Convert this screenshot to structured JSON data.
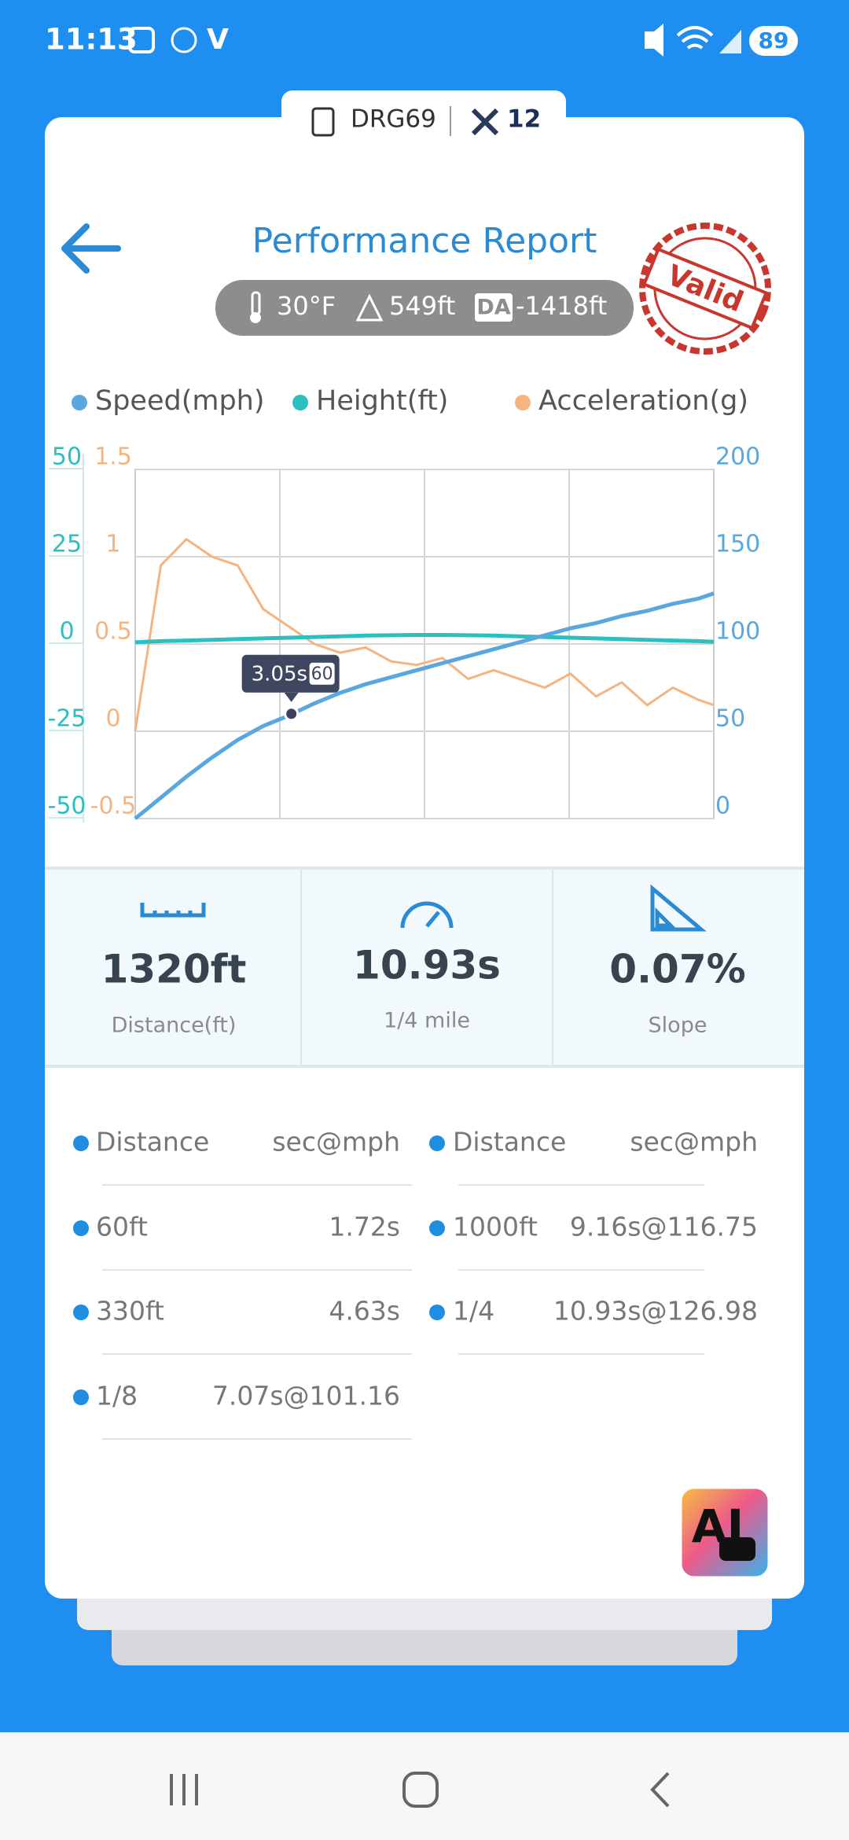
{
  "status_bar": {
    "time": "11:13",
    "carrier_icon": "V",
    "battery": "89"
  },
  "device": {
    "name": "DRG69",
    "satellites": "12"
  },
  "header": {
    "title": "Performance Report",
    "stamp": "Valid"
  },
  "conditions": {
    "temperature": "30°F",
    "altitude": "549ft",
    "da_label": "DA",
    "density_altitude": "-1418ft"
  },
  "chart_data": {
    "type": "line",
    "x": [
      0,
      0.5,
      1,
      1.5,
      2,
      2.5,
      3,
      3.5,
      4,
      4.5,
      5,
      5.5,
      6,
      6.5,
      7,
      7.5,
      8,
      8.5,
      9,
      9.5,
      10,
      10.5,
      11,
      11.3
    ],
    "xlim": [
      0,
      11.3
    ],
    "series": [
      {
        "name": "Speed(mph)",
        "color": "#5aa7e0",
        "axis": "y2",
        "values": [
          0,
          12,
          24,
          35,
          45,
          53,
          59,
          66,
          72,
          77,
          81,
          85,
          89,
          93,
          97,
          101,
          105,
          109,
          112,
          116,
          119,
          123,
          126,
          129
        ]
      },
      {
        "name": "Height(ft)",
        "color": "#2bbfbf",
        "axis": "y",
        "values": [
          0.5,
          0.8,
          1,
          1.2,
          1.4,
          1.6,
          1.8,
          2,
          2.2,
          2.4,
          2.5,
          2.6,
          2.6,
          2.5,
          2.4,
          2.2,
          2,
          1.8,
          1.6,
          1.4,
          1.2,
          1,
          0.8,
          0.6
        ]
      },
      {
        "name": "Acceleration(g)",
        "color": "#f5b47f",
        "axis": "y3",
        "values": [
          0,
          0.95,
          1.1,
          1.0,
          0.95,
          0.7,
          0.6,
          0.5,
          0.45,
          0.48,
          0.4,
          0.38,
          0.42,
          0.3,
          0.35,
          0.3,
          0.25,
          0.33,
          0.2,
          0.28,
          0.15,
          0.25,
          0.18,
          0.15
        ]
      }
    ],
    "ylim": [
      -50,
      50
    ],
    "yticks": [
      -50,
      -25,
      0,
      25,
      50
    ],
    "y3lim": [
      -0.5,
      1.5
    ],
    "y3ticks": [
      -0.5,
      0,
      0.5,
      1,
      1.5
    ],
    "y2lim": [
      0,
      200
    ],
    "y2ticks": [
      0,
      50,
      100,
      150,
      200
    ],
    "grid": true,
    "annotation": {
      "x": 3.05,
      "x_label": "3.05s",
      "value": 60
    }
  },
  "stats": [
    {
      "value": "1320ft",
      "label": "Distance(ft)"
    },
    {
      "value": "10.93s",
      "label": "1/4 mile"
    },
    {
      "value": "0.07%",
      "label": "Slope"
    }
  ],
  "table": {
    "header": [
      "Distance",
      "sec@mph",
      "Distance",
      "sec@mph"
    ],
    "rows": [
      [
        "60ft",
        "1.72s",
        "1000ft",
        "9.16s@116.75"
      ],
      [
        "330ft",
        "4.63s",
        "1/4",
        "10.93s@126.98"
      ],
      [
        "1/8",
        "7.07s@101.16"
      ]
    ]
  },
  "ai_button": {
    "label": "AI"
  }
}
